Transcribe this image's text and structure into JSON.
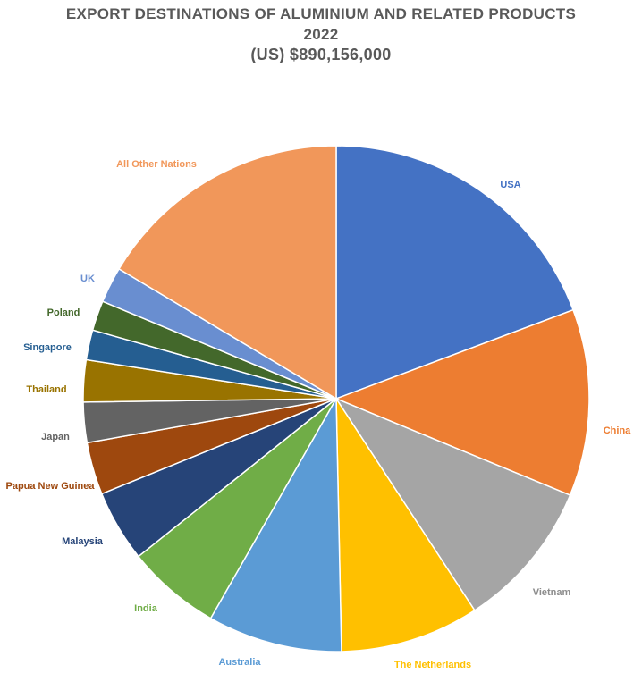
{
  "chart_data": {
    "type": "pie",
    "title": "EXPORT DESTINATIONS OF ALUMINIUM AND RELATED PRODUCTS",
    "subtitle": "2022",
    "total_label": "(US) $890,156,000",
    "slices": [
      {
        "label": "USA",
        "value": 20.2,
        "color": "#4472C4"
      },
      {
        "label": "China",
        "value": 12.5,
        "color": "#ED7D31"
      },
      {
        "label": "Vietnam",
        "value": 10.0,
        "color": "#A5A5A5"
      },
      {
        "label": "The Netherlands",
        "value": 9.3,
        "color": "#FFC000"
      },
      {
        "label": "Australia",
        "value": 9.0,
        "color": "#5B9BD5"
      },
      {
        "label": "India",
        "value": 6.3,
        "color": "#70AD47"
      },
      {
        "label": "Malaysia",
        "value": 4.8,
        "color": "#264478"
      },
      {
        "label": "Papua  New Guinea",
        "value": 3.5,
        "color": "#9E480E"
      },
      {
        "label": "Japan",
        "value": 2.7,
        "color": "#636363"
      },
      {
        "label": "Thailand",
        "value": 2.8,
        "color": "#997300"
      },
      {
        "label": "Singapore",
        "value": 2.0,
        "color": "#255E91"
      },
      {
        "label": "Poland",
        "value": 2.0,
        "color": "#43682B"
      },
      {
        "label": "UK",
        "value": 2.4,
        "color": "#698ED0"
      },
      {
        "label": "All Other Nations",
        "value": 17.2,
        "color": "#F1975A"
      }
    ],
    "start_angle": "12 o'clock",
    "direction": "clockwise",
    "legend": "none (labels outside slices)"
  }
}
